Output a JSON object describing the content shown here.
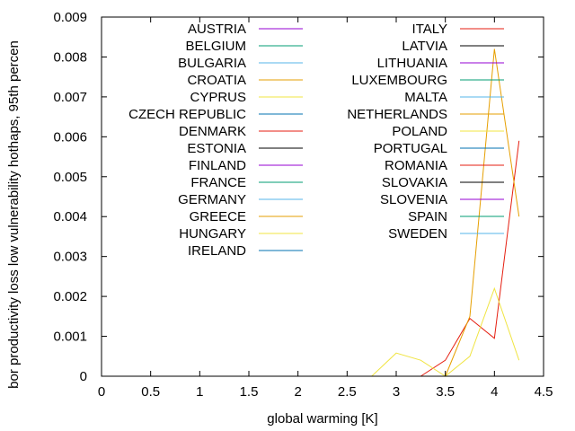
{
  "chart_data": {
    "type": "line",
    "title": "",
    "xlabel": "global warming [K]",
    "ylabel": "bor productivity loss low vulnerability hothaps, 95th percen",
    "xlim": [
      0,
      4.5
    ],
    "ylim": [
      0,
      0.009
    ],
    "x_ticks": [
      0,
      0.5,
      1,
      1.5,
      2,
      2.5,
      3,
      3.5,
      4,
      4.5
    ],
    "x_tick_labels": [
      "0",
      "0.5",
      "1",
      "1.5",
      "2",
      "2.5",
      "3",
      "3.5",
      "4",
      "4.5"
    ],
    "y_ticks": [
      0,
      0.001,
      0.002,
      0.003,
      0.004,
      0.005,
      0.006,
      0.007,
      0.008,
      0.009
    ],
    "y_tick_labels": [
      "0",
      "0.001",
      "0.002",
      "0.003",
      "0.004",
      "0.005",
      "0.006",
      "0.007",
      "0.008",
      "0.009"
    ],
    "grid": false,
    "legend_position": "top (two columns)",
    "series": [
      {
        "name": "AUSTRIA",
        "color": "#9400d3",
        "x": [],
        "y": []
      },
      {
        "name": "BELGIUM",
        "color": "#009e73",
        "x": [],
        "y": []
      },
      {
        "name": "BULGARIA",
        "color": "#56b4e9",
        "x": [],
        "y": []
      },
      {
        "name": "CROATIA",
        "color": "#e69f00",
        "x": [],
        "y": []
      },
      {
        "name": "CYPRUS",
        "color": "#f0e442",
        "x": [],
        "y": []
      },
      {
        "name": "CZECH REPUBLIC",
        "color": "#0072b2",
        "x": [],
        "y": []
      },
      {
        "name": "DENMARK",
        "color": "#e51e10",
        "x": [],
        "y": []
      },
      {
        "name": "ESTONIA",
        "color": "#000000",
        "x": [],
        "y": []
      },
      {
        "name": "FINLAND",
        "color": "#9400d3",
        "x": [],
        "y": []
      },
      {
        "name": "FRANCE",
        "color": "#009e73",
        "x": [],
        "y": []
      },
      {
        "name": "GERMANY",
        "color": "#56b4e9",
        "x": [],
        "y": []
      },
      {
        "name": "GREECE",
        "color": "#e69f00",
        "x": [],
        "y": []
      },
      {
        "name": "HUNGARY",
        "color": "#f0e442",
        "x": [],
        "y": []
      },
      {
        "name": "IRELAND",
        "color": "#0072b2",
        "x": [],
        "y": []
      },
      {
        "name": "ITALY",
        "color": "#e51e10",
        "x": [
          3.25,
          3.5,
          3.75,
          4.0,
          4.25
        ],
        "y": [
          0,
          0.0004,
          0.00145,
          0.00095,
          0.0059
        ]
      },
      {
        "name": "LATVIA",
        "color": "#000000",
        "x": [],
        "y": []
      },
      {
        "name": "LITHUANIA",
        "color": "#9400d3",
        "x": [],
        "y": []
      },
      {
        "name": "LUXEMBOURG",
        "color": "#009e73",
        "x": [],
        "y": []
      },
      {
        "name": "MALTA",
        "color": "#56b4e9",
        "x": [],
        "y": []
      },
      {
        "name": "NETHERLANDS",
        "color": "#e69f00",
        "x": [
          3.5,
          3.75,
          4.0,
          4.25
        ],
        "y": [
          0,
          0.0015,
          0.0082,
          0.004
        ]
      },
      {
        "name": "POLAND",
        "color": "#f0e442",
        "x": [
          2.75,
          3.0,
          3.25,
          3.5,
          3.75,
          4.0,
          4.25
        ],
        "y": [
          0,
          0.00058,
          0.0004,
          0,
          0.0005,
          0.0022,
          0.0004
        ]
      },
      {
        "name": "PORTUGAL",
        "color": "#0072b2",
        "x": [],
        "y": []
      },
      {
        "name": "ROMANIA",
        "color": "#e51e10",
        "x": [],
        "y": []
      },
      {
        "name": "SLOVAKIA",
        "color": "#000000",
        "x": [],
        "y": []
      },
      {
        "name": "SLOVENIA",
        "color": "#9400d3",
        "x": [],
        "y": []
      },
      {
        "name": "SPAIN",
        "color": "#009e73",
        "x": [],
        "y": []
      },
      {
        "name": "SWEDEN",
        "color": "#56b4e9",
        "x": [],
        "y": []
      }
    ]
  }
}
